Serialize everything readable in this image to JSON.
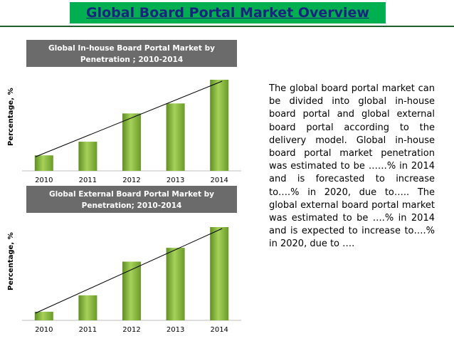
{
  "title": "Global Board Portal Market Overview",
  "paragraph": "The global board portal market can be divided into global in-house board portal and global external board portal according to the delivery model. Global in-house board portal market penetration was estimated to be ……% in 2014 and is forecasted to increase to….% in 2020, due to….. The global external board portal market was estimated to be ….% in 2014 and is expected to increase to….% in 2020, due to ….",
  "colors": {
    "accent": "#00b050",
    "title_text": "#1a237e",
    "bar": "#8cbf3f",
    "header": "#6b6b6b"
  },
  "chart_data": [
    {
      "type": "bar",
      "title_line1": "Global In-house Board Portal Market by",
      "title_line2": "Penetration ; 2010-2014",
      "ylabel": "Percentage, %",
      "categories": [
        "2010",
        "2011",
        "2012",
        "2013",
        "2014"
      ],
      "values": [
        17,
        32,
        63,
        74,
        100
      ],
      "ylim": [
        0,
        100
      ],
      "trendline": true
    },
    {
      "type": "bar",
      "title_line1": "Global  External Board Portal Market by",
      "title_line2": "Penetration; 2010-2014",
      "ylabel": "Percentage, %",
      "categories": [
        "2010",
        "2011",
        "2012",
        "2013",
        "2014"
      ],
      "values": [
        10,
        29,
        68,
        84,
        108
      ],
      "ylim": [
        0,
        108
      ],
      "trendline": true
    }
  ]
}
